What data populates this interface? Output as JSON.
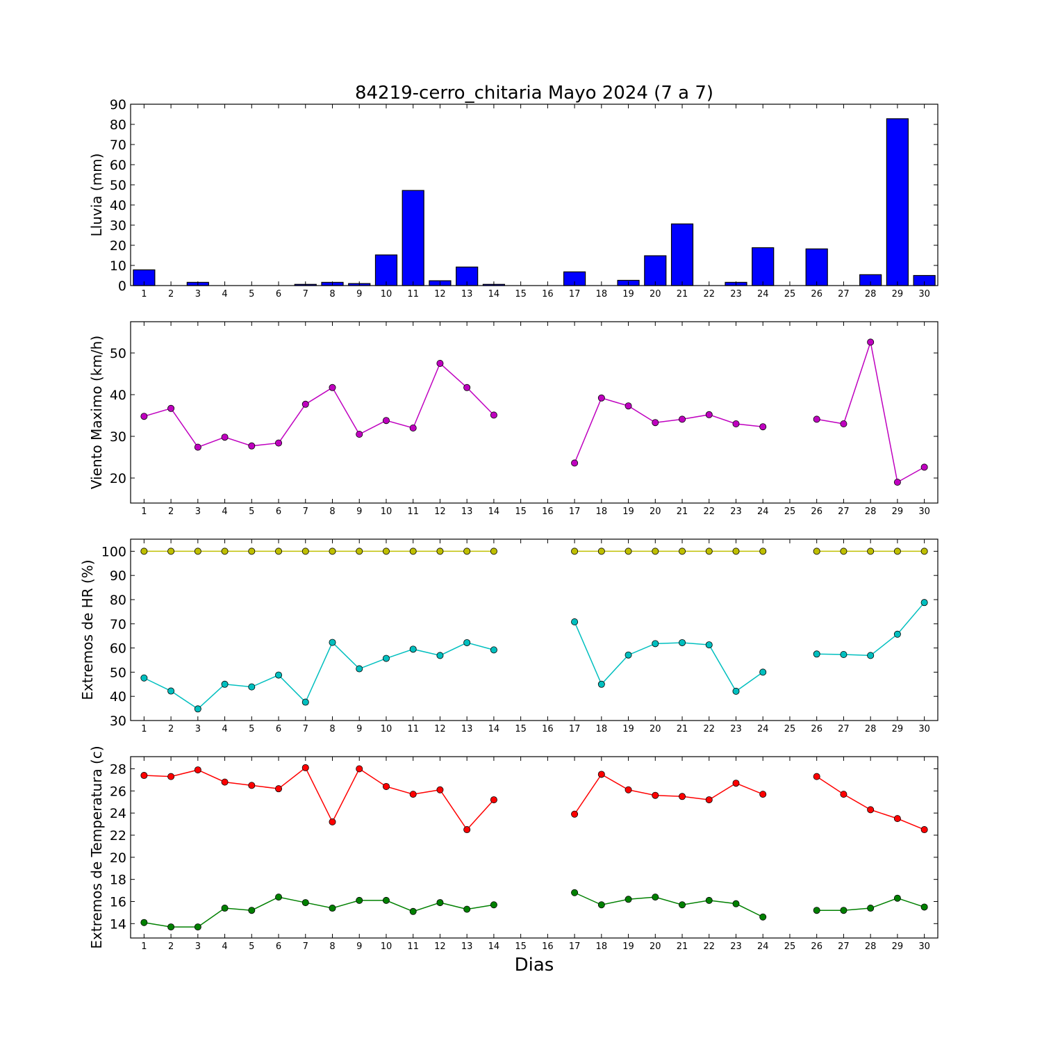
{
  "chart_data": {
    "type": "multi-panel",
    "title": "84219-cerro_chitaria Mayo 2024  (7 a 7)",
    "xlabel": "Dias",
    "days": [
      1,
      2,
      3,
      4,
      5,
      6,
      7,
      8,
      9,
      10,
      11,
      12,
      13,
      14,
      15,
      16,
      17,
      18,
      19,
      20,
      21,
      22,
      23,
      24,
      25,
      26,
      27,
      28,
      29,
      30
    ],
    "panels": [
      {
        "type": "bar",
        "ylabel": "Lluvia (mm)",
        "ylim": [
          0,
          90
        ],
        "yticks": [
          0,
          10,
          20,
          30,
          40,
          50,
          60,
          70,
          80,
          90
        ],
        "series": [
          {
            "color": "#0000ff",
            "values": [
              7.8,
              0,
              1.6,
              0,
              0,
              0,
              0.6,
              1.6,
              1.0,
              15.2,
              47.2,
              2.4,
              9.2,
              0.6,
              0,
              0,
              6.8,
              0,
              2.6,
              14.8,
              30.6,
              0,
              1.6,
              18.8,
              0,
              18.2,
              0,
              5.4,
              82.8,
              5.0
            ]
          }
        ]
      },
      {
        "type": "line",
        "ylabel": "Viento Maximo (km/h)",
        "ylim": [
          14,
          57.5
        ],
        "yticks": [
          20,
          30,
          40,
          50
        ],
        "series": [
          {
            "color": "#bf00bf",
            "values": [
              34.8,
              36.7,
              27.4,
              29.8,
              27.7,
              28.4,
              37.7,
              41.7,
              30.5,
              33.8,
              32.0,
              47.5,
              41.7,
              35.1,
              null,
              null,
              23.6,
              39.2,
              37.3,
              33.3,
              34.1,
              35.2,
              33.0,
              32.3,
              null,
              34.1,
              33.0,
              52.6,
              19.0,
              22.6
            ]
          }
        ]
      },
      {
        "type": "line",
        "ylabel": "Extremos de HR (%)",
        "ylim": [
          30,
          105
        ],
        "yticks": [
          30,
          40,
          50,
          60,
          70,
          80,
          90,
          100
        ],
        "series": [
          {
            "color": "#bfbf00",
            "values": [
              100,
              100,
              100,
              100,
              100,
              100,
              100,
              100,
              100,
              100,
              100,
              100,
              100,
              100,
              null,
              null,
              100,
              100,
              100,
              100,
              100,
              100,
              100,
              100,
              null,
              100,
              100,
              100,
              100,
              100
            ]
          },
          {
            "color": "#00bfbf",
            "values": [
              47.6,
              42.2,
              34.8,
              45.0,
              43.9,
              48.8,
              37.6,
              62.3,
              51.4,
              55.7,
              59.5,
              56.9,
              62.2,
              59.2,
              null,
              null,
              70.8,
              45.0,
              57.1,
              61.8,
              62.2,
              61.3,
              42.1,
              50.0,
              null,
              57.5,
              57.3,
              56.9,
              65.7,
              78.8
            ]
          }
        ]
      },
      {
        "type": "line",
        "ylabel": "Extremos de Temperatura (c)",
        "ylim": [
          12.7,
          29.1
        ],
        "yticks": [
          14,
          16,
          18,
          20,
          22,
          24,
          26,
          28
        ],
        "series": [
          {
            "color": "#ff0000",
            "values": [
              27.4,
              27.3,
              27.9,
              26.8,
              26.5,
              26.2,
              28.1,
              23.2,
              28.0,
              26.4,
              25.7,
              26.1,
              22.5,
              25.2,
              null,
              null,
              23.9,
              27.5,
              26.1,
              25.6,
              25.5,
              25.2,
              26.7,
              25.7,
              null,
              27.3,
              25.7,
              24.3,
              23.5,
              22.5
            ]
          },
          {
            "color": "#008000",
            "values": [
              14.1,
              13.7,
              13.7,
              15.4,
              15.2,
              16.4,
              15.9,
              15.4,
              16.1,
              16.1,
              15.1,
              15.9,
              15.3,
              15.7,
              null,
              null,
              16.8,
              15.7,
              16.2,
              16.4,
              15.7,
              16.1,
              15.8,
              14.6,
              null,
              15.2,
              15.2,
              15.4,
              16.3,
              15.5
            ]
          }
        ]
      }
    ]
  }
}
